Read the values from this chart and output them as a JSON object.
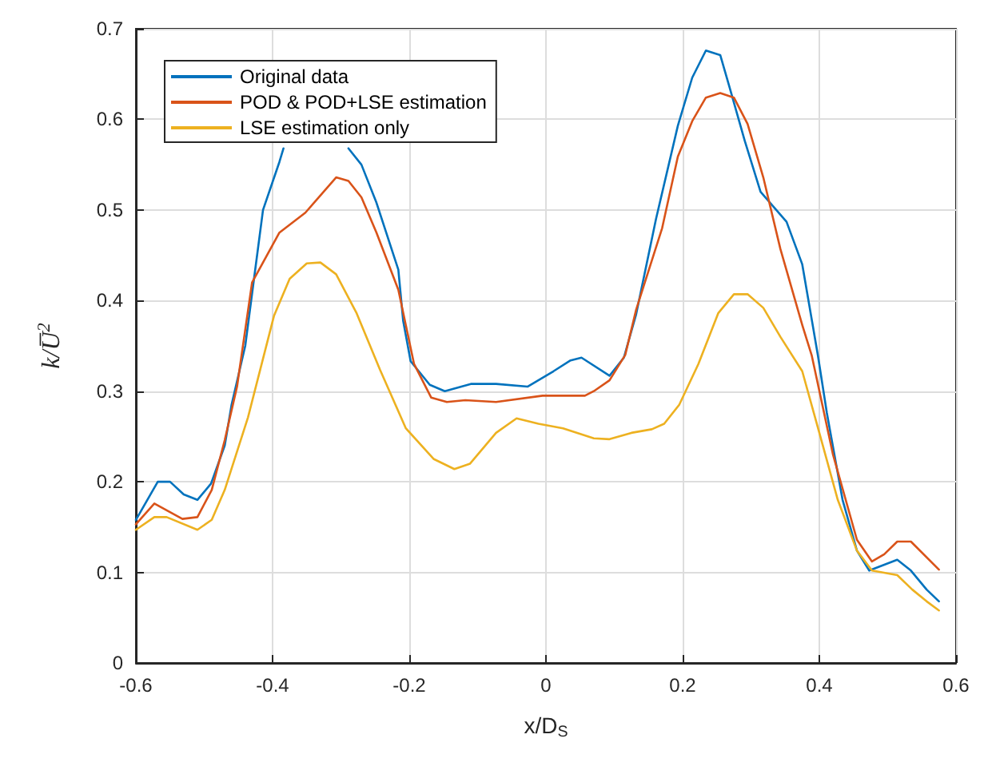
{
  "chart_data": {
    "type": "line",
    "xlabel": "x/D$_{S}$",
    "ylabel": "k/U̅$^{2}$",
    "xlim": [
      -0.6,
      0.6
    ],
    "xticks": [
      -0.6,
      -0.4,
      -0.2,
      0,
      0.2,
      0.4,
      0.6
    ],
    "ylim": [
      0,
      0.7
    ],
    "yticks": [
      0,
      0.1,
      0.2,
      0.3,
      0.4,
      0.5,
      0.6,
      0.7
    ],
    "grid": true,
    "legend": "top left",
    "marker": "none",
    "line_style": "solid",
    "series": [
      {
        "name": "Original data",
        "color": "#0072bd",
        "x": [
          -0.6,
          -0.568,
          -0.55,
          -0.53,
          -0.51,
          -0.49,
          -0.47,
          -0.46,
          -0.44,
          -0.414,
          -0.39,
          -0.384,
          -0.34,
          -0.289,
          -0.27,
          -0.248,
          -0.216,
          -0.209,
          -0.198,
          -0.17,
          -0.148,
          -0.11,
          -0.073,
          -0.027,
          0.011,
          0.036,
          0.052,
          0.093,
          0.114,
          0.132,
          0.161,
          0.193,
          0.214,
          0.234,
          0.255,
          0.268,
          0.291,
          0.314,
          0.352,
          0.375,
          0.398,
          0.411,
          0.434,
          0.455,
          0.473,
          0.514,
          0.534,
          0.557,
          0.575
        ],
        "values": [
          0.158,
          0.2,
          0.2,
          0.186,
          0.18,
          0.198,
          0.24,
          0.285,
          0.35,
          0.5,
          0.553,
          0.568,
          null,
          0.568,
          0.55,
          0.508,
          0.434,
          0.378,
          0.333,
          0.307,
          0.3,
          0.308,
          0.308,
          0.305,
          0.322,
          0.334,
          0.337,
          0.317,
          0.337,
          0.385,
          0.49,
          0.593,
          0.646,
          0.676,
          0.671,
          0.637,
          0.576,
          0.52,
          0.487,
          0.44,
          0.339,
          0.276,
          0.18,
          0.124,
          0.102,
          0.114,
          0.102,
          0.081,
          0.068
        ]
      },
      {
        "name": "POD & POD+LSE estimation",
        "color": "#d95319",
        "x": [
          -0.6,
          -0.573,
          -0.532,
          -0.51,
          -0.489,
          -0.47,
          -0.452,
          -0.43,
          -0.39,
          -0.352,
          -0.307,
          -0.289,
          -0.27,
          -0.248,
          -0.216,
          -0.193,
          -0.168,
          -0.145,
          -0.118,
          -0.073,
          -0.005,
          0.057,
          0.07,
          0.093,
          0.116,
          0.132,
          0.17,
          0.193,
          0.214,
          0.234,
          0.255,
          0.275,
          0.295,
          0.318,
          0.343,
          0.375,
          0.389,
          0.42,
          0.455,
          0.477,
          0.495,
          0.514,
          0.534,
          0.575
        ],
        "values": [
          0.153,
          0.176,
          0.159,
          0.161,
          0.191,
          0.246,
          0.305,
          0.42,
          0.475,
          0.497,
          0.536,
          0.532,
          0.514,
          0.475,
          0.412,
          0.33,
          0.293,
          0.288,
          0.29,
          0.288,
          0.295,
          0.295,
          0.3,
          0.312,
          0.34,
          0.39,
          0.48,
          0.559,
          0.598,
          0.624,
          0.629,
          0.624,
          0.595,
          0.536,
          0.457,
          0.373,
          0.339,
          0.23,
          0.136,
          0.112,
          0.12,
          0.134,
          0.134,
          0.103
        ]
      },
      {
        "name": "LSE estimation only",
        "color": "#edb120",
        "x": [
          -0.6,
          -0.573,
          -0.555,
          -0.51,
          -0.489,
          -0.47,
          -0.436,
          -0.398,
          -0.375,
          -0.35,
          -0.33,
          -0.307,
          -0.277,
          -0.243,
          -0.205,
          -0.164,
          -0.134,
          -0.111,
          -0.073,
          -0.043,
          -0.011,
          0.025,
          0.07,
          0.093,
          0.125,
          0.155,
          0.173,
          0.195,
          0.223,
          0.252,
          0.275,
          0.295,
          0.318,
          0.343,
          0.375,
          0.4,
          0.427,
          0.455,
          0.477,
          0.514,
          0.536,
          0.557,
          0.575
        ],
        "values": [
          0.147,
          0.161,
          0.161,
          0.147,
          0.158,
          0.191,
          0.271,
          0.383,
          0.424,
          0.441,
          0.442,
          0.429,
          0.386,
          0.324,
          0.259,
          0.225,
          0.214,
          0.22,
          0.254,
          0.27,
          0.264,
          0.259,
          0.248,
          0.247,
          0.254,
          0.258,
          0.264,
          0.285,
          0.33,
          0.386,
          0.407,
          0.407,
          0.392,
          0.36,
          0.322,
          0.254,
          0.18,
          0.124,
          0.102,
          0.097,
          0.081,
          0.068,
          0.058
        ]
      }
    ]
  }
}
